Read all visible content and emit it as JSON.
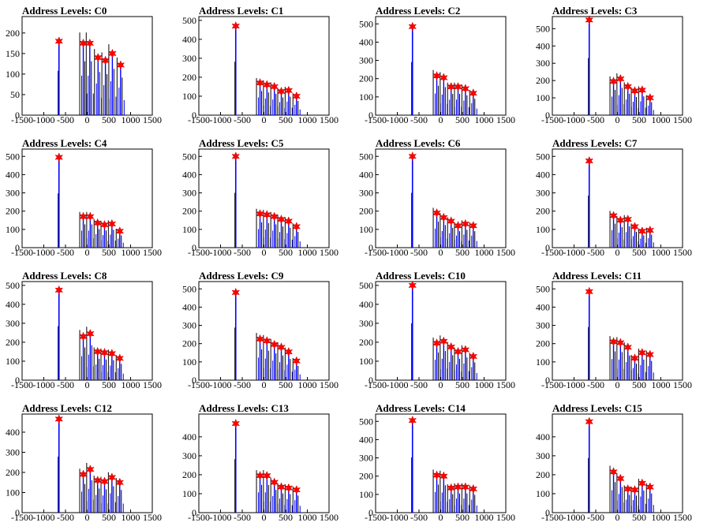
{
  "colors": {
    "line": "#0000ff",
    "marker": "#ff0000",
    "axis": "#000000",
    "background": "#ffffff"
  },
  "chart_data": [
    {
      "type": "bar",
      "title": "Address Levels: C0",
      "xticks": [
        -1500,
        -1000,
        -500,
        0,
        500,
        1000,
        1500
      ],
      "yticks": [
        0,
        50,
        100,
        150,
        200
      ],
      "xlim": [
        -1500,
        1500
      ],
      "ylim": [
        0,
        240
      ],
      "peaks": [
        {
          "x": -650,
          "y": 180
        },
        {
          "x": -90,
          "y": 175
        },
        {
          "x": 60,
          "y": 175
        },
        {
          "x": 250,
          "y": 140
        },
        {
          "x": 420,
          "y": 133
        },
        {
          "x": 580,
          "y": 150
        },
        {
          "x": 770,
          "y": 122
        }
      ]
    },
    {
      "type": "bar",
      "title": "Address Levels: C1",
      "xticks": [
        -1500,
        -1000,
        -500,
        0,
        500,
        1000,
        1500
      ],
      "yticks": [
        0,
        100,
        200,
        300,
        400,
        500
      ],
      "xlim": [
        -1500,
        1500
      ],
      "ylim": [
        0,
        520
      ],
      "peaks": [
        {
          "x": -650,
          "y": 470
        },
        {
          "x": -90,
          "y": 170
        },
        {
          "x": 70,
          "y": 160
        },
        {
          "x": 240,
          "y": 150
        },
        {
          "x": 400,
          "y": 125
        },
        {
          "x": 570,
          "y": 130
        },
        {
          "x": 750,
          "y": 100
        }
      ]
    },
    {
      "type": "bar",
      "title": "Address Levels: C2",
      "xticks": [
        -1500,
        -1000,
        -500,
        0,
        500,
        1000,
        1500
      ],
      "yticks": [
        0,
        100,
        200,
        300,
        400,
        500
      ],
      "xlim": [
        -1500,
        1500
      ],
      "ylim": [
        0,
        540
      ],
      "peaks": [
        {
          "x": -650,
          "y": 485
        },
        {
          "x": -90,
          "y": 215
        },
        {
          "x": 70,
          "y": 205
        },
        {
          "x": 240,
          "y": 155
        },
        {
          "x": 400,
          "y": 155
        },
        {
          "x": 570,
          "y": 145
        },
        {
          "x": 750,
          "y": 120
        }
      ]
    },
    {
      "type": "bar",
      "title": "Address Levels: C3",
      "xticks": [
        -1500,
        -1000,
        -500,
        0,
        500,
        1000,
        1500
      ],
      "yticks": [
        0,
        100,
        200,
        300,
        400,
        500
      ],
      "xlim": [
        -1500,
        1500
      ],
      "ylim": [
        0,
        570
      ],
      "peaks": [
        {
          "x": -650,
          "y": 550
        },
        {
          "x": -90,
          "y": 195
        },
        {
          "x": 70,
          "y": 210
        },
        {
          "x": 240,
          "y": 165
        },
        {
          "x": 400,
          "y": 140
        },
        {
          "x": 570,
          "y": 145
        },
        {
          "x": 750,
          "y": 100
        }
      ]
    },
    {
      "type": "bar",
      "title": "Address Levels: C4",
      "xticks": [
        -1500,
        -1000,
        -500,
        0,
        500,
        1000,
        1500
      ],
      "yticks": [
        0,
        100,
        200,
        300,
        400,
        500
      ],
      "xlim": [
        -1500,
        1500
      ],
      "ylim": [
        0,
        540
      ],
      "peaks": [
        {
          "x": -650,
          "y": 495
        },
        {
          "x": -90,
          "y": 170
        },
        {
          "x": 70,
          "y": 170
        },
        {
          "x": 240,
          "y": 135
        },
        {
          "x": 400,
          "y": 125
        },
        {
          "x": 570,
          "y": 130
        },
        {
          "x": 750,
          "y": 90
        }
      ]
    },
    {
      "type": "bar",
      "title": "Address Levels: C5",
      "xticks": [
        -1500,
        -1000,
        -500,
        0,
        500,
        1000,
        1500
      ],
      "yticks": [
        0,
        100,
        200,
        300,
        400,
        500
      ],
      "xlim": [
        -1500,
        1500
      ],
      "ylim": [
        0,
        540
      ],
      "peaks": [
        {
          "x": -650,
          "y": 500
        },
        {
          "x": -90,
          "y": 185
        },
        {
          "x": 70,
          "y": 180
        },
        {
          "x": 240,
          "y": 170
        },
        {
          "x": 400,
          "y": 155
        },
        {
          "x": 570,
          "y": 145
        },
        {
          "x": 750,
          "y": 115
        }
      ]
    },
    {
      "type": "bar",
      "title": "Address Levels: C6",
      "xticks": [
        -1500,
        -1000,
        -500,
        0,
        500,
        1000,
        1500
      ],
      "yticks": [
        0,
        100,
        200,
        300,
        400,
        500
      ],
      "xlim": [
        -1500,
        1500
      ],
      "ylim": [
        0,
        540
      ],
      "peaks": [
        {
          "x": -650,
          "y": 500
        },
        {
          "x": -90,
          "y": 190
        },
        {
          "x": 70,
          "y": 165
        },
        {
          "x": 240,
          "y": 145
        },
        {
          "x": 400,
          "y": 120
        },
        {
          "x": 570,
          "y": 130
        },
        {
          "x": 750,
          "y": 120
        }
      ]
    },
    {
      "type": "bar",
      "title": "Address Levels: C7",
      "xticks": [
        -1500,
        -1000,
        -500,
        0,
        500,
        1000,
        1500
      ],
      "yticks": [
        0,
        100,
        200,
        300,
        400,
        500
      ],
      "xlim": [
        -1500,
        1500
      ],
      "ylim": [
        0,
        540
      ],
      "peaks": [
        {
          "x": -650,
          "y": 475
        },
        {
          "x": -90,
          "y": 175
        },
        {
          "x": 70,
          "y": 150
        },
        {
          "x": 240,
          "y": 155
        },
        {
          "x": 400,
          "y": 115
        },
        {
          "x": 570,
          "y": 90
        },
        {
          "x": 750,
          "y": 95
        }
      ]
    },
    {
      "type": "bar",
      "title": "Address Levels: C8",
      "xticks": [
        -1500,
        -1000,
        -500,
        0,
        500,
        1000,
        1500
      ],
      "yticks": [
        0,
        100,
        200,
        300,
        400,
        500
      ],
      "xlim": [
        -1500,
        1500
      ],
      "ylim": [
        0,
        520
      ],
      "peaks": [
        {
          "x": -650,
          "y": 475
        },
        {
          "x": -90,
          "y": 230
        },
        {
          "x": 70,
          "y": 245
        },
        {
          "x": 240,
          "y": 150
        },
        {
          "x": 400,
          "y": 145
        },
        {
          "x": 570,
          "y": 140
        },
        {
          "x": 750,
          "y": 115
        }
      ]
    },
    {
      "type": "bar",
      "title": "Address Levels: C9",
      "xticks": [
        -1500,
        -1000,
        -500,
        0,
        500,
        1000,
        1500
      ],
      "yticks": [
        0,
        100,
        200,
        300,
        400,
        500
      ],
      "xlim": [
        -1500,
        1500
      ],
      "ylim": [
        0,
        540
      ],
      "peaks": [
        {
          "x": -650,
          "y": 480
        },
        {
          "x": -90,
          "y": 225
        },
        {
          "x": 70,
          "y": 215
        },
        {
          "x": 240,
          "y": 195
        },
        {
          "x": 400,
          "y": 180
        },
        {
          "x": 570,
          "y": 155
        },
        {
          "x": 750,
          "y": 105
        }
      ]
    },
    {
      "type": "bar",
      "title": "Address Levels: C10",
      "xticks": [
        -1500,
        -1000,
        -500,
        0,
        500,
        1000,
        1500
      ],
      "yticks": [
        0,
        100,
        200,
        300,
        400,
        500
      ],
      "xlim": [
        -1500,
        1500
      ],
      "ylim": [
        0,
        520
      ],
      "peaks": [
        {
          "x": -650,
          "y": 500
        },
        {
          "x": -90,
          "y": 195
        },
        {
          "x": 70,
          "y": 205
        },
        {
          "x": 240,
          "y": 175
        },
        {
          "x": 400,
          "y": 150
        },
        {
          "x": 570,
          "y": 160
        },
        {
          "x": 750,
          "y": 125
        }
      ]
    },
    {
      "type": "bar",
      "title": "Address Levels: C11",
      "xticks": [
        -1500,
        -1000,
        -500,
        0,
        500,
        1000,
        1500
      ],
      "yticks": [
        0,
        100,
        200,
        300,
        400,
        500
      ],
      "xlim": [
        -1500,
        1500
      ],
      "ylim": [
        0,
        540
      ],
      "peaks": [
        {
          "x": -650,
          "y": 485
        },
        {
          "x": -90,
          "y": 210
        },
        {
          "x": 70,
          "y": 205
        },
        {
          "x": 240,
          "y": 180
        },
        {
          "x": 400,
          "y": 120
        },
        {
          "x": 570,
          "y": 150
        },
        {
          "x": 750,
          "y": 140
        }
      ]
    },
    {
      "type": "bar",
      "title": "Address Levels: C12",
      "xticks": [
        -1500,
        -1000,
        -500,
        0,
        500,
        1000,
        1500
      ],
      "yticks": [
        0,
        100,
        200,
        300,
        400
      ],
      "xlim": [
        -1500,
        1500
      ],
      "ylim": [
        0,
        490
      ],
      "peaks": [
        {
          "x": -650,
          "y": 465
        },
        {
          "x": -90,
          "y": 190
        },
        {
          "x": 70,
          "y": 215
        },
        {
          "x": 240,
          "y": 160
        },
        {
          "x": 400,
          "y": 155
        },
        {
          "x": 570,
          "y": 175
        },
        {
          "x": 750,
          "y": 150
        }
      ]
    },
    {
      "type": "bar",
      "title": "Address Levels: C13",
      "xticks": [
        -1500,
        -1000,
        -500,
        0,
        500,
        1000,
        1500
      ],
      "yticks": [
        0,
        100,
        200,
        300,
        400
      ],
      "xlim": [
        -1500,
        1500
      ],
      "ylim": [
        0,
        520
      ],
      "peaks": [
        {
          "x": -650,
          "y": 470
        },
        {
          "x": -90,
          "y": 195
        },
        {
          "x": 70,
          "y": 195
        },
        {
          "x": 240,
          "y": 160
        },
        {
          "x": 400,
          "y": 135
        },
        {
          "x": 570,
          "y": 130
        },
        {
          "x": 750,
          "y": 120
        }
      ]
    },
    {
      "type": "bar",
      "title": "Address Levels: C14",
      "xticks": [
        -1500,
        -1000,
        -500,
        0,
        500,
        1000,
        1500
      ],
      "yticks": [
        0,
        100,
        200,
        300,
        400,
        500
      ],
      "xlim": [
        -1500,
        1500
      ],
      "ylim": [
        0,
        540
      ],
      "peaks": [
        {
          "x": -650,
          "y": 505
        },
        {
          "x": -90,
          "y": 205
        },
        {
          "x": 70,
          "y": 200
        },
        {
          "x": 240,
          "y": 135
        },
        {
          "x": 400,
          "y": 140
        },
        {
          "x": 570,
          "y": 140
        },
        {
          "x": 750,
          "y": 130
        }
      ]
    },
    {
      "type": "bar",
      "title": "Address Levels: C15",
      "xticks": [
        -1500,
        -1000,
        -500,
        0,
        500,
        1000,
        1500
      ],
      "yticks": [
        0,
        100,
        200,
        300,
        400
      ],
      "xlim": [
        -1500,
        1500
      ],
      "ylim": [
        0,
        520
      ],
      "peaks": [
        {
          "x": -650,
          "y": 480
        },
        {
          "x": -90,
          "y": 215
        },
        {
          "x": 70,
          "y": 180
        },
        {
          "x": 240,
          "y": 125
        },
        {
          "x": 400,
          "y": 120
        },
        {
          "x": 570,
          "y": 155
        },
        {
          "x": 750,
          "y": 135
        }
      ]
    }
  ]
}
